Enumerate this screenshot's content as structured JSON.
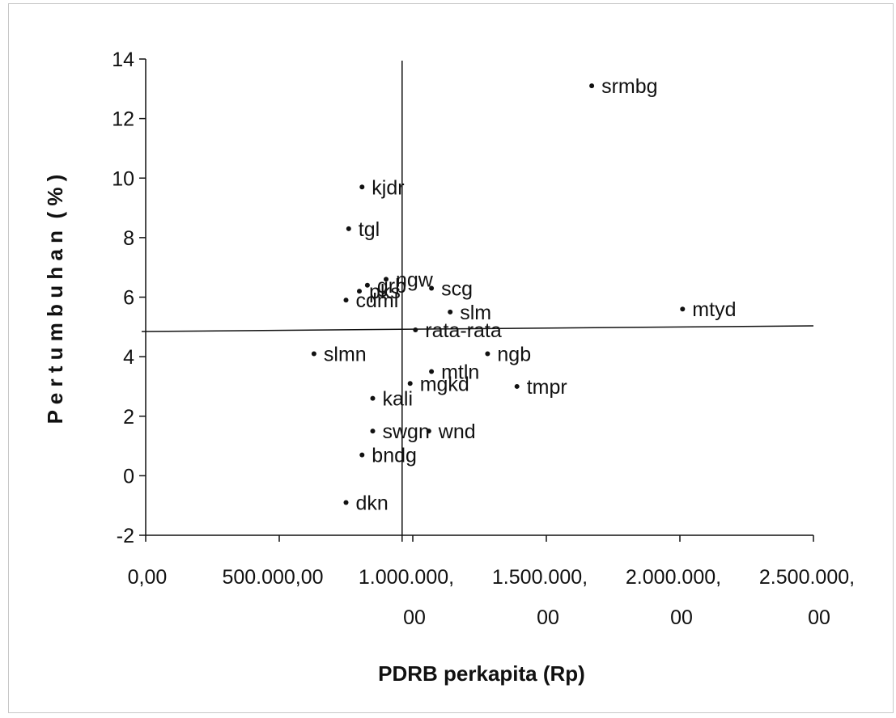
{
  "chart_data": {
    "type": "scatter",
    "title": "",
    "xlabel": "PDRB perkapita (Rp)",
    "ylabel": "P e r t u m b u h a n  ( % )",
    "xlim": [
      0,
      2500000
    ],
    "ylim": [
      -2,
      14
    ],
    "x_ticks": [
      0,
      500000,
      1000000,
      1500000,
      2000000,
      2500000
    ],
    "x_tick_labels": [
      [
        "0,00"
      ],
      [
        "500.000,00"
      ],
      [
        "1.000.000,",
        "00"
      ],
      [
        "1.500.000,",
        "00"
      ],
      [
        "2.000.000,",
        "00"
      ],
      [
        "2.500.000,",
        "00"
      ]
    ],
    "y_ticks": [
      -2,
      0,
      2,
      4,
      6,
      8,
      10,
      12,
      14
    ],
    "y_tick_labels": [
      "-2",
      "0",
      "2",
      "4",
      "6",
      "8",
      "10",
      "12",
      "14"
    ],
    "reference_lines": {
      "x": 960000,
      "y": 4.9
    },
    "points": [
      {
        "label": "srmbg",
        "x": 1670000,
        "y": 13.1
      },
      {
        "label": "kjdr",
        "x": 810000,
        "y": 9.7
      },
      {
        "label": "tgl",
        "x": 760000,
        "y": 8.3
      },
      {
        "label": "ngw",
        "x": 900000,
        "y": 6.6
      },
      {
        "label": "grb",
        "x": 830000,
        "y": 6.4
      },
      {
        "label": "pks",
        "x": 800000,
        "y": 6.2
      },
      {
        "label": "cdml",
        "x": 750000,
        "y": 5.9
      },
      {
        "label": "scg",
        "x": 1070000,
        "y": 6.3
      },
      {
        "label": "slm",
        "x": 1140000,
        "y": 5.5
      },
      {
        "label": "rata-rata",
        "x": 1010000,
        "y": 4.9
      },
      {
        "label": "mtyd",
        "x": 2010000,
        "y": 5.6
      },
      {
        "label": "slmn",
        "x": 630000,
        "y": 4.1
      },
      {
        "label": "ngb",
        "x": 1280000,
        "y": 4.1
      },
      {
        "label": "mtln",
        "x": 1070000,
        "y": 3.5
      },
      {
        "label": "mgkd",
        "x": 990000,
        "y": 3.1
      },
      {
        "label": "tmpr",
        "x": 1390000,
        "y": 3.0
      },
      {
        "label": "kali",
        "x": 850000,
        "y": 2.6
      },
      {
        "label": "swgn",
        "x": 850000,
        "y": 1.5
      },
      {
        "label": "wnd",
        "x": 1060000,
        "y": 1.5
      },
      {
        "label": "bndg",
        "x": 810000,
        "y": 0.7
      },
      {
        "label": "dkn",
        "x": 750000,
        "y": -0.9
      }
    ],
    "grid": false,
    "legend": "none"
  }
}
